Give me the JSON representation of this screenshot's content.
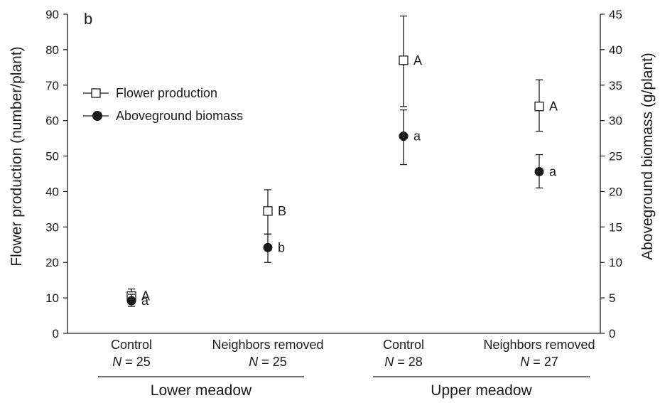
{
  "chart_data": {
    "type": "scatter",
    "panel_label": "b",
    "ylabel_left": "Flower production (number/plant)",
    "ylabel_right": "Aboveground biomass (g/plant)",
    "ylim_left": [
      0,
      90
    ],
    "ylim_right": [
      0,
      45
    ],
    "yticks_left": [
      "0",
      "10",
      "20",
      "30",
      "40",
      "50",
      "60",
      "70",
      "80",
      "90"
    ],
    "yticks_right": [
      "0",
      "5",
      "10",
      "15",
      "20",
      "25",
      "30",
      "35",
      "40",
      "45"
    ],
    "categories": [
      {
        "label": "Control",
        "n_label": "N",
        "n_value": "= 25"
      },
      {
        "label": "Neighbors removed",
        "n_label": "N",
        "n_value": "= 25"
      },
      {
        "label": "Control",
        "n_label": "N",
        "n_value": "= 28"
      },
      {
        "label": "Neighbors removed",
        "n_label": "N",
        "n_value": "= 27"
      }
    ],
    "groups": [
      {
        "label": "Lower meadow",
        "categories": [
          0,
          1
        ]
      },
      {
        "label": "Upper meadow",
        "categories": [
          2,
          3
        ]
      }
    ],
    "legend": {
      "position": "top-left",
      "entries": [
        "Flower production",
        "Aboveground biomass"
      ]
    },
    "series": [
      {
        "name": "Flower production",
        "axis": "left",
        "marker": "open-square",
        "values": [
          10.5,
          34.5,
          77,
          64
        ],
        "err_low": [
          9,
          28,
          64,
          57
        ],
        "err_high": [
          12.5,
          40.5,
          89.5,
          71.5
        ],
        "letters": [
          "A",
          "B",
          "A",
          "A"
        ]
      },
      {
        "name": "Aboveground biomass",
        "axis": "right",
        "marker": "filled-circle",
        "values": [
          4.6,
          12.1,
          27.8,
          22.8
        ],
        "err_low": [
          3.8,
          10,
          23.8,
          20.5
        ],
        "err_high": [
          5.5,
          14,
          31.5,
          25.2
        ],
        "letters": [
          "a",
          "b",
          "a",
          "a"
        ]
      }
    ],
    "grid": false
  }
}
